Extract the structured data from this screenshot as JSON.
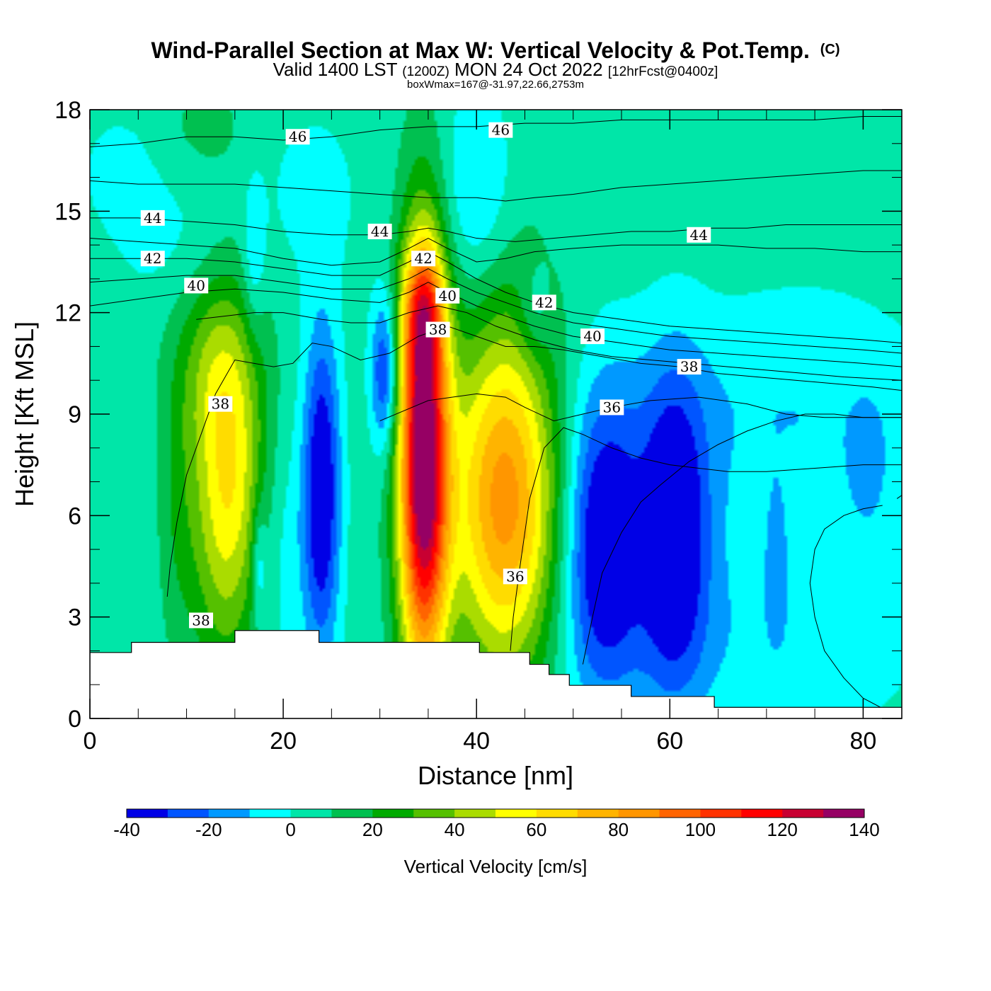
{
  "chart_data": {
    "type": "heatmap",
    "title": "Wind-Parallel Section at Max W: Vertical Velocity & Pot.Temp.",
    "title_mark": "(C)",
    "subtitle": {
      "valid": "Valid 1400 LST",
      "utc": "(1200Z)",
      "date": "MON 24 Oct 2022",
      "forecast": "[12hrFcst@0400z]"
    },
    "annotation": "boxWmax=167@-31.97,22.66,2753m",
    "xlabel": "Distance [nm]",
    "ylabel": "Height [Kft MSL]",
    "xlim": [
      0,
      84
    ],
    "ylim": [
      0,
      18
    ],
    "xticks": [
      0,
      20,
      40,
      60,
      80
    ],
    "xtick_labels": [
      "0",
      "20",
      "40",
      "60",
      "80"
    ],
    "yticks": [
      0,
      3,
      6,
      9,
      12,
      15,
      18
    ],
    "ytick_labels": [
      "0",
      "3",
      "6",
      "9",
      "12",
      "15",
      "18"
    ],
    "colorbar": {
      "label": "Vertical Velocity [cm/s]",
      "levels": [
        -40,
        -30,
        -20,
        -10,
        0,
        10,
        20,
        30,
        40,
        50,
        60,
        70,
        80,
        90,
        100,
        110,
        120,
        130,
        140
      ],
      "tick_values": [
        -40,
        -20,
        0,
        20,
        40,
        60,
        80,
        100,
        120,
        140
      ],
      "tick_labels": [
        "-40",
        "-20",
        "0",
        "20",
        "40",
        "60",
        "80",
        "100",
        "120",
        "140"
      ],
      "colors": [
        "#0000e6",
        "#0055ff",
        "#0099ff",
        "#00ffff",
        "#00e6a8",
        "#00c050",
        "#00aa00",
        "#55c000",
        "#aadc00",
        "#ffff00",
        "#ffdc00",
        "#ffb400",
        "#ff9600",
        "#ff6400",
        "#ff3200",
        "#ff0000",
        "#c80032",
        "#960064"
      ]
    },
    "background_value": 5,
    "vertical_velocity_cells": [
      {
        "x": 14.5,
        "y": 6.8,
        "sx": 2.8,
        "sy": 3.6,
        "w": 58
      },
      {
        "x": 12.5,
        "y": 10.5,
        "sx": 3.0,
        "sy": 2.0,
        "w": 18
      },
      {
        "x": 34.5,
        "y": 7.5,
        "sx": 1.8,
        "sy": 4.4,
        "w": 138
      },
      {
        "x": 34.5,
        "y": 12.0,
        "sx": 1.5,
        "sy": 1.4,
        "w": 45
      },
      {
        "x": 43.0,
        "y": 6.5,
        "sx": 4.0,
        "sy": 3.8,
        "w": 82
      },
      {
        "x": 24.0,
        "y": 6.8,
        "sx": 1.3,
        "sy": 3.3,
        "w": -48
      },
      {
        "x": 30.5,
        "y": 10.2,
        "sx": 1.0,
        "sy": 1.6,
        "w": -40
      },
      {
        "x": 19.0,
        "y": 5.0,
        "sx": 3.0,
        "sy": 3.0,
        "w": -14
      },
      {
        "x": 17.5,
        "y": 4.6,
        "sx": 0.5,
        "sy": 1.2,
        "w": -20
      },
      {
        "x": 53.0,
        "y": 5.2,
        "sx": 2.8,
        "sy": 3.0,
        "w": -44
      },
      {
        "x": 60.5,
        "y": 5.5,
        "sx": 2.4,
        "sy": 3.2,
        "w": -44
      },
      {
        "x": 57.0,
        "y": 5.5,
        "sx": 7.0,
        "sy": 3.5,
        "w": -10
      },
      {
        "x": 17.0,
        "y": 13.5,
        "sx": 0.8,
        "sy": 1.6,
        "w": -16
      },
      {
        "x": 40.0,
        "y": 15.5,
        "sx": 2.5,
        "sy": 2.2,
        "w": -18
      },
      {
        "x": 46.0,
        "y": 12.0,
        "sx": 1.2,
        "sy": 1.0,
        "w": -14
      },
      {
        "x": 80.5,
        "y": 7.5,
        "sx": 1.3,
        "sy": 1.2,
        "w": -14
      },
      {
        "x": 71.0,
        "y": 4.5,
        "sx": 0.7,
        "sy": 1.4,
        "w": -12
      },
      {
        "x": 75.0,
        "y": 6.0,
        "sx": 8.0,
        "sy": 4.5,
        "w": -9
      },
      {
        "x": 23.0,
        "y": 15.5,
        "sx": 4.0,
        "sy": 2.0,
        "w": -8
      },
      {
        "x": 9.0,
        "y": 14.0,
        "sx": 4.5,
        "sy": 1.5,
        "w": -8
      },
      {
        "x": 70.0,
        "y": 9.5,
        "sx": 14.0,
        "sy": 2.0,
        "w": -8
      },
      {
        "x": 65.0,
        "y": 2.0,
        "sx": 14.0,
        "sy": 1.8,
        "w": -7
      },
      {
        "x": 4.0,
        "y": 4.0,
        "sx": 2.0,
        "sy": 4.0,
        "w": -4
      },
      {
        "x": 9.0,
        "y": 6.0,
        "sx": 1.5,
        "sy": 3.0,
        "w": 10
      },
      {
        "x": 3.0,
        "y": 16.2,
        "sx": 3.0,
        "sy": 1.3,
        "w": -8
      },
      {
        "x": 12.0,
        "y": 17.5,
        "sx": 3.0,
        "sy": 1.0,
        "w": 8
      }
    ],
    "theta_isentropes": [
      {
        "value": 36,
        "x": [
          30,
          35,
          40,
          43,
          45,
          48,
          51,
          54,
          58,
          63,
          68,
          72,
          76,
          80,
          84
        ],
        "y": [
          8.8,
          9.4,
          9.6,
          9.5,
          9.2,
          8.8,
          9.0,
          9.2,
          9.4,
          9.5,
          9.3,
          9.0,
          8.9,
          8.9,
          8.9
        ],
        "labels": [
          [
            54,
            9.2
          ]
        ]
      },
      {
        "value": 36,
        "x": [
          43.5,
          43.8,
          44.5,
          45.5,
          47,
          49,
          51,
          54,
          57,
          60,
          63,
          66,
          70,
          75,
          80,
          84
        ],
        "y": [
          2.0,
          3.0,
          4.5,
          6.5,
          8.0,
          8.6,
          8.4,
          8.0,
          7.7,
          7.5,
          7.4,
          7.3,
          7.3,
          7.4,
          7.5,
          7.5
        ],
        "labels": [
          [
            44,
            4.2
          ]
        ]
      },
      {
        "value": 37,
        "x": [
          51,
          52,
          53,
          55,
          57,
          59,
          62,
          65,
          68,
          71,
          74,
          77,
          80,
          84
        ],
        "y": [
          1.6,
          3.0,
          4.3,
          5.5,
          6.4,
          6.9,
          7.6,
          8.1,
          8.5,
          8.8,
          9.0,
          9.0,
          8.9,
          8.9
        ],
        "labels": []
      },
      {
        "value": 35,
        "x": [
          83.5,
          84
        ],
        "y": [
          6.5,
          6.6
        ],
        "labels": []
      },
      {
        "value": 34,
        "x": [
          82,
          80,
          78,
          76,
          75,
          74.5,
          75,
          76,
          78,
          80,
          82
        ],
        "y": [
          0.3,
          0.6,
          1.2,
          2.0,
          3.0,
          4.0,
          5.0,
          5.6,
          6.0,
          6.2,
          6.3
        ],
        "labels": []
      },
      {
        "value": 38,
        "x": [
          8,
          8.3,
          9.0,
          10,
          11.5,
          13,
          15,
          17,
          19,
          21,
          23,
          25,
          28,
          31,
          34,
          37,
          40,
          43,
          46,
          49,
          53,
          57,
          61,
          65,
          69,
          73,
          77,
          81,
          84
        ],
        "y": [
          3.6,
          4.5,
          5.8,
          7.2,
          8.4,
          9.6,
          10.6,
          10.5,
          10.4,
          10.5,
          11.1,
          11.0,
          10.6,
          10.8,
          11.3,
          11.6,
          11.3,
          11.0,
          11.0,
          10.9,
          10.7,
          10.5,
          10.4,
          10.2,
          10.1,
          10.0,
          9.9,
          9.8,
          9.7
        ],
        "labels": [
          [
            13.5,
            9.3
          ],
          [
            11.5,
            2.9
          ],
          [
            36,
            11.5
          ],
          [
            62,
            10.4
          ]
        ]
      },
      {
        "value": 38,
        "x": [
          11,
          14,
          17,
          20,
          24,
          27,
          30,
          33,
          36,
          39,
          42,
          46,
          50,
          54,
          58,
          62,
          66,
          70,
          74,
          78,
          84
        ],
        "y": [
          11.8,
          11.9,
          12.0,
          12.0,
          11.8,
          11.7,
          11.7,
          12.0,
          12.2,
          12.0,
          11.6,
          11.2,
          10.9,
          10.7,
          10.6,
          10.5,
          10.4,
          10.3,
          10.2,
          10.1,
          10.0
        ],
        "labels": []
      },
      {
        "value": 40,
        "x": [
          0,
          5,
          10,
          15,
          20,
          25,
          30,
          33,
          35,
          37,
          40,
          43,
          46,
          50,
          55,
          60,
          65,
          70,
          75,
          80,
          84
        ],
        "y": [
          12.2,
          12.4,
          12.6,
          12.7,
          12.6,
          12.4,
          12.3,
          12.6,
          12.9,
          12.6,
          12.2,
          11.9,
          11.6,
          11.3,
          11.1,
          10.9,
          10.8,
          10.7,
          10.6,
          10.5,
          10.4
        ],
        "labels": [
          [
            11,
            12.8
          ],
          [
            37,
            12.5
          ],
          [
            52,
            11.3
          ]
        ]
      },
      {
        "value": 41,
        "x": [
          0,
          5,
          10,
          15,
          20,
          25,
          30,
          33,
          35,
          37,
          40,
          43,
          46,
          50,
          55,
          60,
          65,
          70,
          75,
          80,
          84
        ],
        "y": [
          12.9,
          13.0,
          13.1,
          13.1,
          12.9,
          12.7,
          12.7,
          13.0,
          13.3,
          13.0,
          12.6,
          12.3,
          12.0,
          11.7,
          11.5,
          11.3,
          11.2,
          11.1,
          11.0,
          10.9,
          10.8
        ],
        "labels": []
      },
      {
        "value": 42,
        "x": [
          0,
          5,
          10,
          15,
          20,
          25,
          30,
          33,
          35,
          37,
          40,
          43,
          46,
          50,
          55,
          60,
          65,
          70,
          75,
          80,
          84
        ],
        "y": [
          13.6,
          13.6,
          13.6,
          13.5,
          13.3,
          13.1,
          13.1,
          13.5,
          13.8,
          13.5,
          13.0,
          12.6,
          12.3,
          12.0,
          11.8,
          11.6,
          11.5,
          11.4,
          11.3,
          11.2,
          11.1
        ],
        "labels": [
          [
            6.5,
            13.6
          ],
          [
            34.5,
            13.6
          ],
          [
            47,
            12.3
          ]
        ]
      },
      {
        "value": 43,
        "x": [
          0,
          5,
          10,
          15,
          20,
          25,
          30,
          33,
          35,
          37,
          40,
          43,
          46,
          50,
          55,
          60,
          65,
          70,
          75,
          80,
          84
        ],
        "y": [
          14.2,
          14.1,
          14.0,
          13.9,
          13.6,
          13.4,
          13.5,
          13.9,
          14.2,
          13.9,
          13.5,
          13.6,
          13.8,
          13.9,
          14.0,
          14.0,
          14.0,
          13.9,
          13.9,
          13.8,
          13.8
        ],
        "labels": []
      },
      {
        "value": 44,
        "x": [
          0,
          5,
          10,
          15,
          20,
          25,
          30,
          33,
          35,
          37,
          40,
          44,
          48,
          52,
          56,
          60,
          64,
          68,
          72,
          76,
          80,
          84
        ],
        "y": [
          14.8,
          14.8,
          14.7,
          14.6,
          14.4,
          14.3,
          14.3,
          14.4,
          14.5,
          14.4,
          14.2,
          14.1,
          14.2,
          14.3,
          14.4,
          14.4,
          14.5,
          14.5,
          14.6,
          14.6,
          14.6,
          14.6
        ],
        "labels": [
          [
            6.5,
            14.8
          ],
          [
            30,
            14.4
          ],
          [
            63,
            14.3
          ]
        ]
      },
      {
        "value": 45,
        "x": [
          0,
          5,
          10,
          15,
          20,
          25,
          30,
          35,
          40,
          43,
          46,
          50,
          55,
          60,
          65,
          70,
          75,
          80,
          84
        ],
        "y": [
          15.9,
          15.8,
          15.8,
          15.8,
          15.7,
          15.6,
          15.5,
          15.4,
          15.4,
          15.3,
          15.4,
          15.5,
          15.7,
          15.8,
          15.9,
          16.0,
          16.1,
          16.2,
          16.2
        ],
        "labels": []
      },
      {
        "value": 46,
        "x": [
          0,
          5,
          10,
          15,
          20,
          25,
          30,
          35,
          40,
          45,
          50,
          55,
          60,
          65,
          70,
          75,
          80,
          84
        ],
        "y": [
          16.9,
          17.0,
          17.2,
          17.2,
          17.1,
          17.2,
          17.4,
          17.5,
          17.5,
          17.6,
          17.6,
          17.7,
          17.7,
          17.7,
          17.7,
          17.7,
          17.8,
          17.8
        ],
        "labels": [
          [
            21.5,
            17.2
          ],
          [
            42.5,
            17.4
          ]
        ]
      }
    ],
    "terrain": {
      "x": [
        0,
        4.3,
        4.3,
        15.0,
        15.0,
        23.7,
        23.7,
        40.3,
        40.3,
        45.5,
        45.5,
        47.5,
        47.5,
        49.6,
        49.6,
        56.0,
        56.0,
        64.6,
        64.6,
        84
      ],
      "y": [
        1.95,
        1.95,
        2.25,
        2.25,
        2.6,
        2.6,
        2.25,
        2.25,
        1.95,
        1.95,
        1.6,
        1.6,
        1.3,
        1.3,
        0.98,
        0.98,
        0.65,
        0.65,
        0.33,
        0.33
      ]
    }
  }
}
